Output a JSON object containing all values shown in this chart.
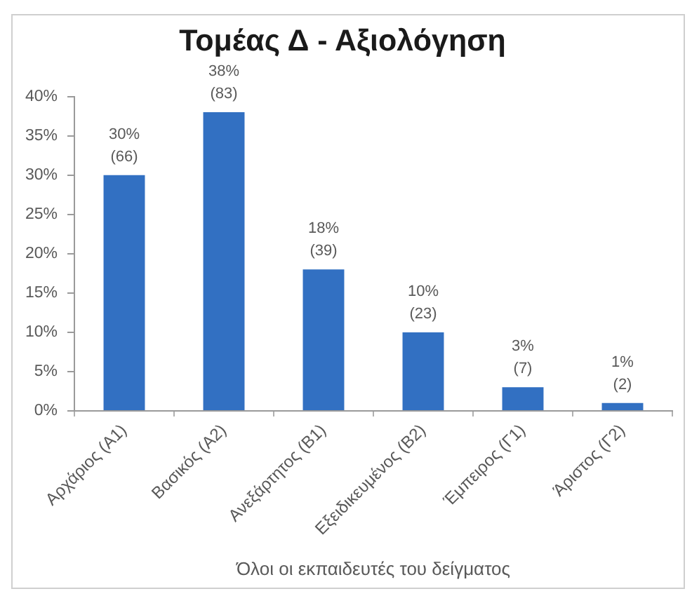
{
  "chart_data": {
    "type": "bar",
    "title": "Τομέας Δ - Αξιολόγηση",
    "xlabel": "Όλοι οι εκπαιδευτές του δείγματος",
    "categories": [
      "Αρχάριος (Α1)",
      "Βασικός (Α2)",
      "Ανεξάρτητος (Β1)",
      "Εξειδικευμένος (Β2)",
      "Έμπειρος (Γ1)",
      "Άριστος (Γ2)"
    ],
    "values": [
      30,
      38,
      18,
      10,
      3,
      1
    ],
    "value_labels": [
      "30%\n(66)",
      "38%\n(83)",
      "18%\n(39)",
      "10%\n(23)",
      "3%\n(7)",
      "1%\n(2)"
    ],
    "color": "#3270c2",
    "ylim": [
      0,
      40
    ],
    "yticks": [
      {
        "value": 0,
        "label": "0%"
      },
      {
        "value": 5,
        "label": "5%"
      },
      {
        "value": 10,
        "label": "10%"
      },
      {
        "value": 15,
        "label": "15%"
      },
      {
        "value": 20,
        "label": "20%"
      },
      {
        "value": 25,
        "label": "25%"
      },
      {
        "value": 30,
        "label": "30%"
      },
      {
        "value": 35,
        "label": "35%"
      },
      {
        "value": 40,
        "label": "40%"
      }
    ]
  }
}
